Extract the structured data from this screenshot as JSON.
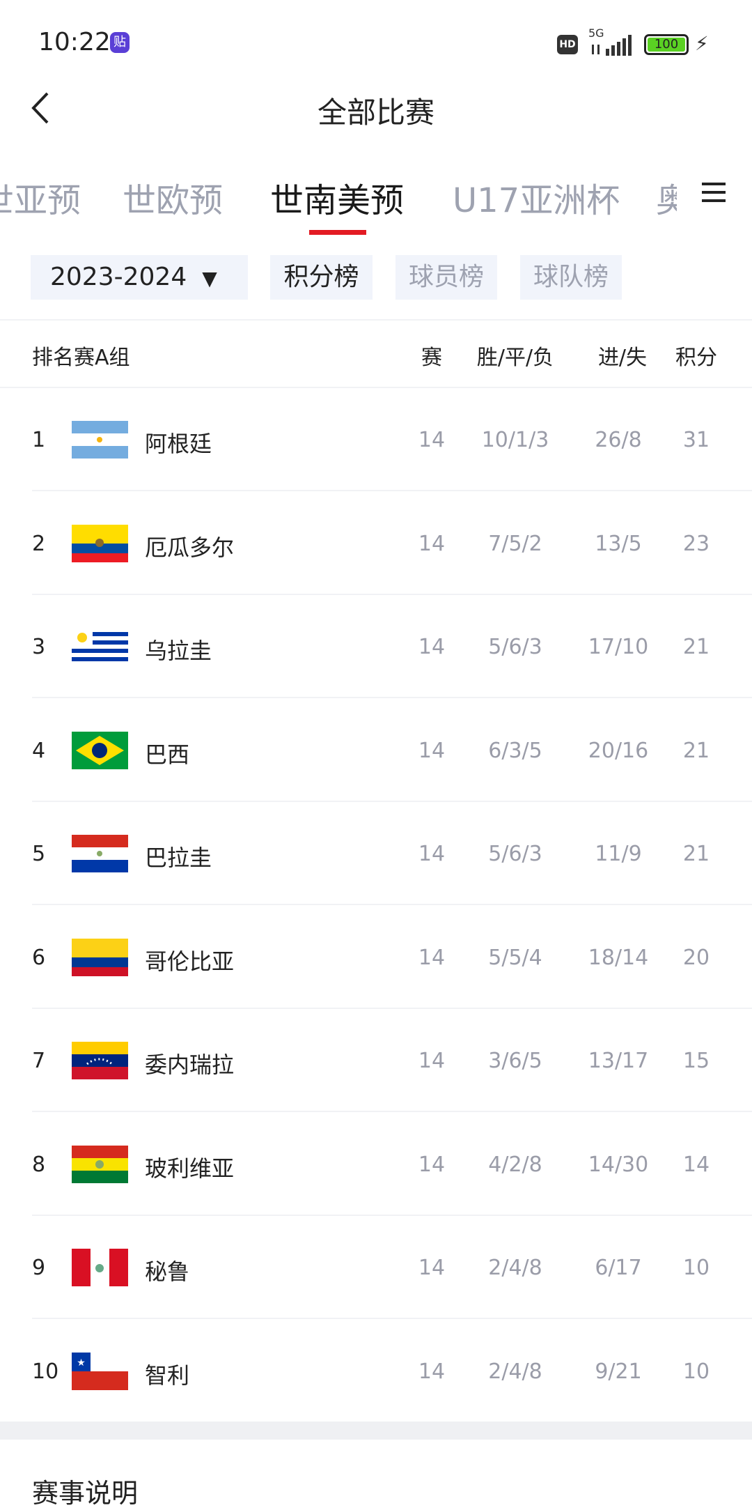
{
  "status_bar": {
    "time": "10:22",
    "app_badge": "贴",
    "hd": "HD",
    "network": "5G",
    "battery": "100",
    "battery_color": "#5ad123"
  },
  "nav": {
    "title": "全部比赛",
    "back_icon": "chevron-left-icon"
  },
  "tabs": [
    {
      "label": "世亚预"
    },
    {
      "label": "世欧预"
    },
    {
      "label": "世南美预",
      "active": true
    },
    {
      "label": "U17亚洲杯"
    },
    {
      "label": "奥"
    }
  ],
  "accent": "#e31b23",
  "filters": {
    "season": "2023-2024",
    "options": [
      {
        "label": "积分榜",
        "selected": true
      },
      {
        "label": "球员榜"
      },
      {
        "label": "球队榜"
      }
    ]
  },
  "table": {
    "group": "排名赛A组",
    "columns": [
      "赛",
      "胜/平/负",
      "进/失",
      "积分"
    ],
    "rows": [
      {
        "rank": "1",
        "team": "阿根廷",
        "flag": "argentina",
        "played": "14",
        "wdl": "10/1/3",
        "goals": "26/8",
        "points": "31"
      },
      {
        "rank": "2",
        "team": "厄瓜多尔",
        "flag": "ecuador",
        "played": "14",
        "wdl": "7/5/2",
        "goals": "13/5",
        "points": "23"
      },
      {
        "rank": "3",
        "team": "乌拉圭",
        "flag": "uruguay",
        "played": "14",
        "wdl": "5/6/3",
        "goals": "17/10",
        "points": "21"
      },
      {
        "rank": "4",
        "team": "巴西",
        "flag": "brazil",
        "played": "14",
        "wdl": "6/3/5",
        "goals": "20/16",
        "points": "21"
      },
      {
        "rank": "5",
        "team": "巴拉圭",
        "flag": "paraguay",
        "played": "14",
        "wdl": "5/6/3",
        "goals": "11/9",
        "points": "21"
      },
      {
        "rank": "6",
        "team": "哥伦比亚",
        "flag": "colombia",
        "played": "14",
        "wdl": "5/5/4",
        "goals": "18/14",
        "points": "20"
      },
      {
        "rank": "7",
        "team": "委内瑞拉",
        "flag": "venezuela",
        "played": "14",
        "wdl": "3/6/5",
        "goals": "13/17",
        "points": "15"
      },
      {
        "rank": "8",
        "team": "玻利维亚",
        "flag": "bolivia",
        "played": "14",
        "wdl": "4/2/8",
        "goals": "14/30",
        "points": "14"
      },
      {
        "rank": "9",
        "team": "秘鲁",
        "flag": "peru",
        "played": "14",
        "wdl": "2/4/8",
        "goals": "6/17",
        "points": "10"
      },
      {
        "rank": "10",
        "team": "智利",
        "flag": "chile",
        "played": "14",
        "wdl": "2/4/8",
        "goals": "9/21",
        "points": "10"
      }
    ]
  },
  "section": {
    "title": "赛事说明"
  }
}
